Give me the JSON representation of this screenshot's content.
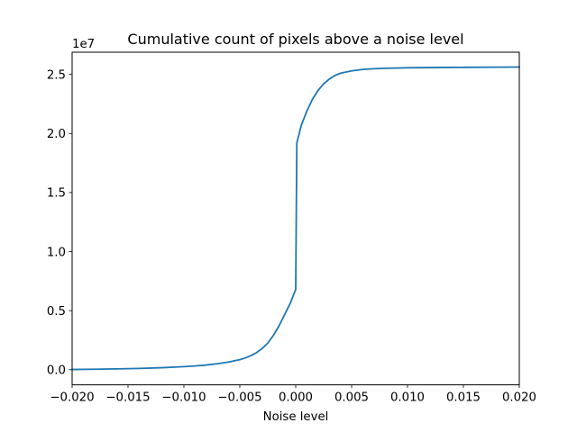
{
  "chart_data": {
    "type": "line",
    "title": "Cumulative count of pixels above a noise level",
    "xlabel": "Noise level",
    "ylabel": "",
    "y_offset_text": "1e7",
    "xlim": [
      -0.02,
      0.02
    ],
    "ylim": [
      -1280000,
      26880000
    ],
    "x_ticks": [
      -0.02,
      -0.015,
      -0.01,
      -0.005,
      0.0,
      0.005,
      0.01,
      0.015,
      0.02
    ],
    "x_tick_labels": [
      "−0.020",
      "−0.015",
      "−0.010",
      "−0.005",
      "0.000",
      "0.005",
      "0.010",
      "0.015",
      "0.020"
    ],
    "y_ticks": [
      0,
      5000000,
      10000000,
      15000000,
      20000000,
      25000000
    ],
    "y_tick_labels": [
      "0.0",
      "0.5",
      "1.0",
      "1.5",
      "2.0",
      "2.5"
    ],
    "grid": false,
    "legend": "none",
    "series": [
      {
        "color": "#1f77b4",
        "x": [
          -0.02,
          -0.018,
          -0.016,
          -0.014,
          -0.012,
          -0.01,
          -0.009,
          -0.008,
          -0.007,
          -0.006,
          -0.005,
          -0.0045,
          -0.004,
          -0.0035,
          -0.003,
          -0.0025,
          -0.002,
          -0.0015,
          -0.001,
          -0.0005,
          0.0,
          0.0001,
          0.0005,
          0.001,
          0.0015,
          0.002,
          0.0025,
          0.003,
          0.0035,
          0.004,
          0.005,
          0.006,
          0.007,
          0.008,
          0.01,
          0.012,
          0.015,
          0.02
        ],
        "y": [
          20000,
          40000,
          70000,
          110000,
          170000,
          260000,
          320000,
          400000,
          510000,
          650000,
          850000,
          1000000,
          1200000,
          1450000,
          1800000,
          2250000,
          2900000,
          3700000,
          4650000,
          5600000,
          6800000,
          19200000,
          20700000,
          21900000,
          22900000,
          23650000,
          24200000,
          24600000,
          24900000,
          25100000,
          25300000,
          25420000,
          25480000,
          25520000,
          25560000,
          25580000,
          25600000,
          25620000
        ]
      }
    ]
  }
}
